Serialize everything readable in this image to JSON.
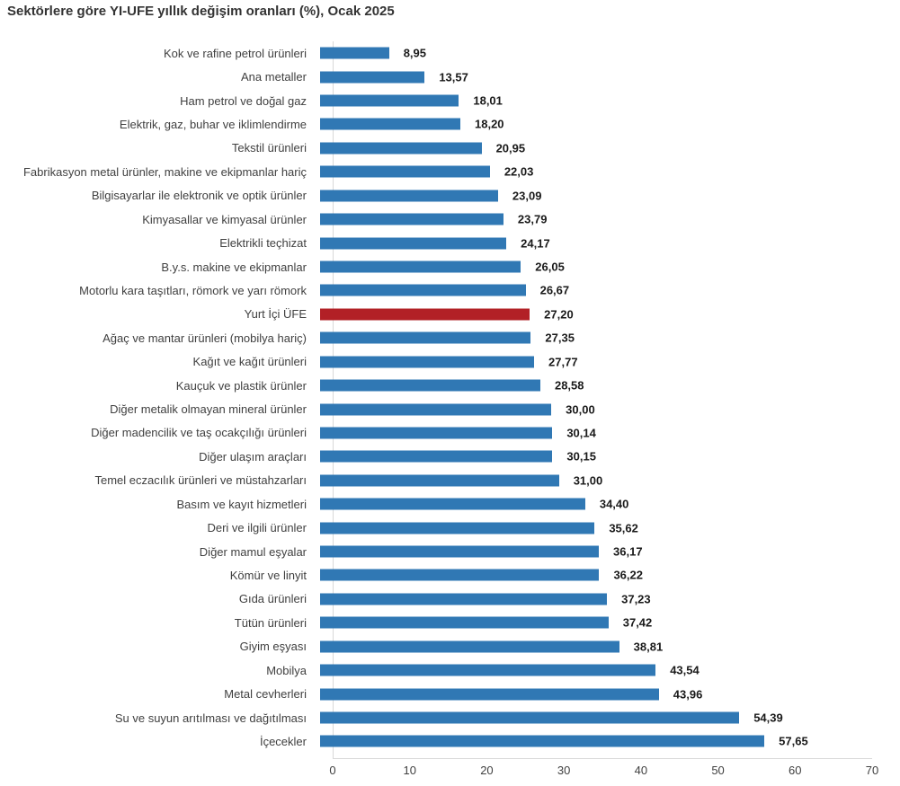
{
  "title": "Sektörlere göre YI-UFE yıllık değişim oranları (%), Ocak 2025",
  "chart_data": {
    "type": "bar",
    "orientation": "horizontal",
    "title": "Sektörlere göre YI-UFE yıllık değişim oranları (%), Ocak 2025",
    "xlabel": "",
    "ylabel": "",
    "xlim": [
      0,
      70
    ],
    "x_ticks": [
      0,
      10,
      20,
      30,
      40,
      50,
      60,
      70
    ],
    "grid": false,
    "legend": "none",
    "categories": [
      "Kok ve rafine petrol ürünleri",
      "Ana metaller",
      "Ham petrol ve doğal gaz",
      "Elektrik, gaz, buhar ve iklimlendirme",
      "Tekstil ürünleri",
      "Fabrikasyon metal ürünler, makine ve ekipmanlar hariç",
      "Bilgisayarlar ile elektronik ve optik ürünler",
      "Kimyasallar ve kimyasal ürünler",
      "Elektrikli teçhizat",
      "B.y.s. makine ve ekipmanlar",
      "Motorlu kara taşıtları, römork ve yarı römork",
      "Yurt İçi ÜFE",
      "Ağaç ve mantar ürünleri (mobilya hariç)",
      "Kağıt ve kağıt ürünleri",
      "Kauçuk ve plastik ürünler",
      "Diğer metalik olmayan mineral ürünler",
      "Diğer madencilik ve taş ocakçılığı ürünleri",
      "Diğer ulaşım araçları",
      "Temel eczacılık ürünleri ve müstahzarları",
      "Basım ve kayıt hizmetleri",
      "Deri ve ilgili ürünler",
      "Diğer mamul eşyalar",
      "Kömür ve linyit",
      "Gıda ürünleri",
      "Tütün ürünleri",
      "Giyim eşyası",
      "Mobilya",
      "Metal cevherleri",
      "Su ve suyun arıtılması ve dağıtılması",
      "İçecekler"
    ],
    "values": [
      8.95,
      13.57,
      18.01,
      18.2,
      20.95,
      22.03,
      23.09,
      23.79,
      24.17,
      26.05,
      26.67,
      27.2,
      27.35,
      27.77,
      28.58,
      30.0,
      30.14,
      30.15,
      31.0,
      34.4,
      35.62,
      36.17,
      36.22,
      37.23,
      37.42,
      38.81,
      43.54,
      43.96,
      54.39,
      57.65
    ],
    "value_labels": [
      "8,95",
      "13,57",
      "18,01",
      "18,20",
      "20,95",
      "22,03",
      "23,09",
      "23,79",
      "24,17",
      "26,05",
      "26,67",
      "27,20",
      "27,35",
      "27,77",
      "28,58",
      "30,00",
      "30,14",
      "30,15",
      "31,00",
      "34,40",
      "35,62",
      "36,17",
      "36,22",
      "37,23",
      "37,42",
      "38,81",
      "43,54",
      "43,96",
      "54,39",
      "57,65"
    ],
    "highlight_category": "Yurt İçi ÜFE",
    "highlight_index": 11,
    "colors": {
      "bar": "#3078b4",
      "highlight_bar": "#b22026",
      "axis_line": "#d9d9d9",
      "category_text": "#404040",
      "value_text": "#1a1a1a",
      "title_text": "#333333"
    }
  }
}
